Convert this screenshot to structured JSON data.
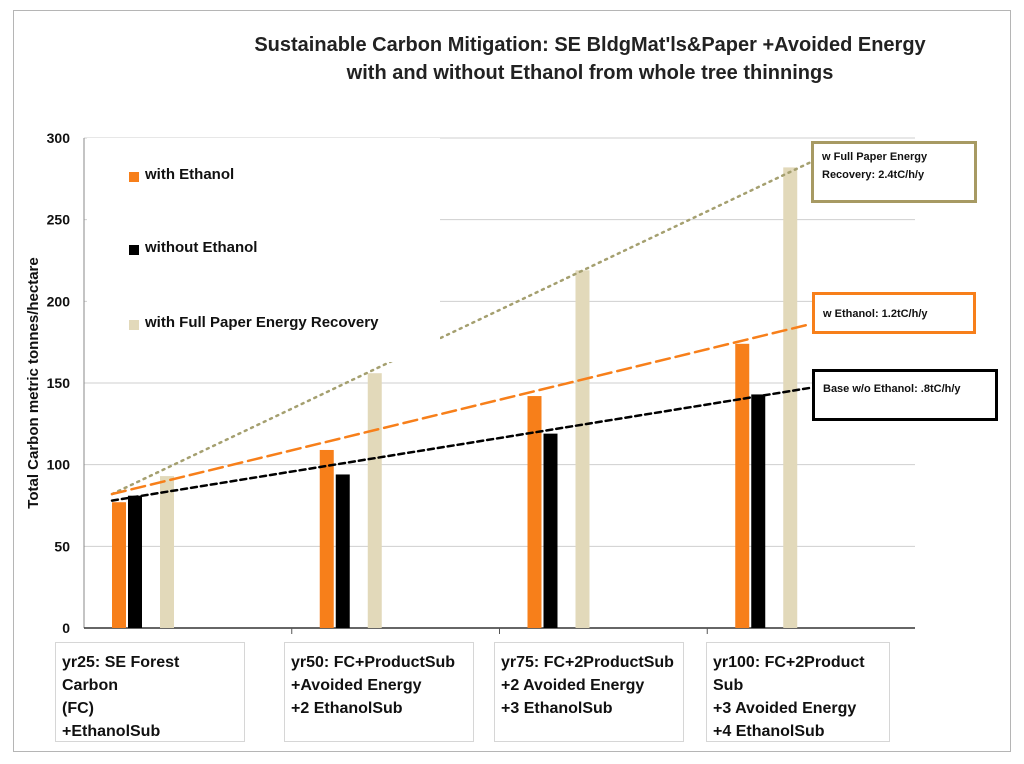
{
  "chart_data": {
    "type": "bar",
    "title": "Sustainable Carbon Mitigation: SE BldgMat'ls&Paper +Avoided Energy",
    "subtitle": "with and without Ethanol from whole tree thinnings",
    "ylabel": "Total Carbon metric tonnes/hectare",
    "xlabel": "",
    "ylim": [
      0,
      300
    ],
    "yticks": [
      "0",
      "50",
      "100",
      "150",
      "200",
      "250",
      "300"
    ],
    "grid": true,
    "categories": [
      [
        "yr25: SE Forest Carbon",
        "(FC)",
        "+EthanolSub"
      ],
      [
        "yr50:  FC+ProductSub",
        "+Avoided Energy",
        "+2 EthanolSub"
      ],
      [
        "yr75: FC+2ProductSub",
        "+2 Avoided Energy",
        "+3 EthanolSub"
      ],
      [
        "yr100: FC+2Product Sub",
        "+3 Avoided Energy",
        "+4 EthanolSub"
      ]
    ],
    "series": [
      {
        "name": "with Ethanol",
        "color": "#f77f1a",
        "values": [
          77,
          109,
          142,
          174
        ]
      },
      {
        "name": "without Ethanol",
        "color": "#000000",
        "values": [
          81,
          94,
          119,
          143
        ]
      },
      {
        "name": "with Full Paper Energy Recovery",
        "color": "#e2d9ba",
        "values": [
          93,
          156,
          219,
          282
        ]
      }
    ],
    "legend": [
      {
        "label": "with Ethanol",
        "color": "#f77f1a"
      },
      {
        "label": "without Ethanol",
        "color": "#000000"
      },
      {
        "label": "with Full Paper Energy Recovery",
        "color": "#e2d9ba"
      }
    ],
    "trendlines": [
      {
        "label": "w Full  Paper Energy Recovery: 2.4tC/h/y",
        "color": "#a5a070",
        "style": "dotted",
        "from": 82,
        "to": 285
      },
      {
        "label": "w Ethanol: 1.2tC/h/y",
        "color": "#f77f1a",
        "style": "dashed",
        "from": 82,
        "to": 186
      },
      {
        "label": "Base w/o Ethanol: .8tC/h/y",
        "color": "#000000",
        "style": "dashed",
        "from": 78,
        "to": 147
      }
    ],
    "callouts": [
      {
        "lines": [
          "w Full  Paper Energy",
          "Recovery: 2.4tC/h/y"
        ],
        "border": "#a79a63"
      },
      {
        "lines": [
          "w Ethanol: 1.2tC/h/y"
        ],
        "border": "#f77f1a"
      },
      {
        "lines": [
          "Base w/o Ethanol: .8tC/h/y"
        ],
        "border": "#000000"
      }
    ]
  }
}
